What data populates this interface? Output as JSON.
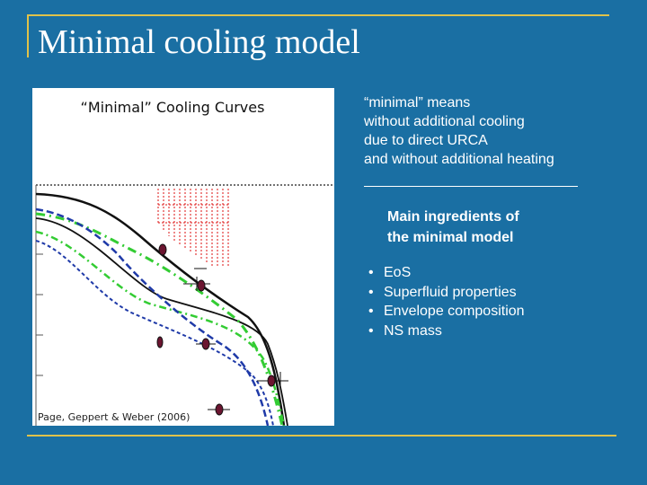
{
  "slide": {
    "title": "Minimal cooling model",
    "definition": "“minimal” means\nwithout additional cooling\ndue to direct URCA\nand without additional heating",
    "ingredients_title": "Main ingredients of\nthe minimal model",
    "ingredients": [
      "EoS",
      "Superfluid properties",
      "Envelope composition",
      "NS mass"
    ]
  },
  "figure": {
    "title": "“Minimal” Cooling Curves",
    "credit": "Page, Geppert & Weber (2006)",
    "colors": {
      "black": "#111111",
      "green": "#33cc33",
      "blue": "#1f3aa8",
      "hatch": "#d11",
      "marker": "#6b1530"
    }
  }
}
